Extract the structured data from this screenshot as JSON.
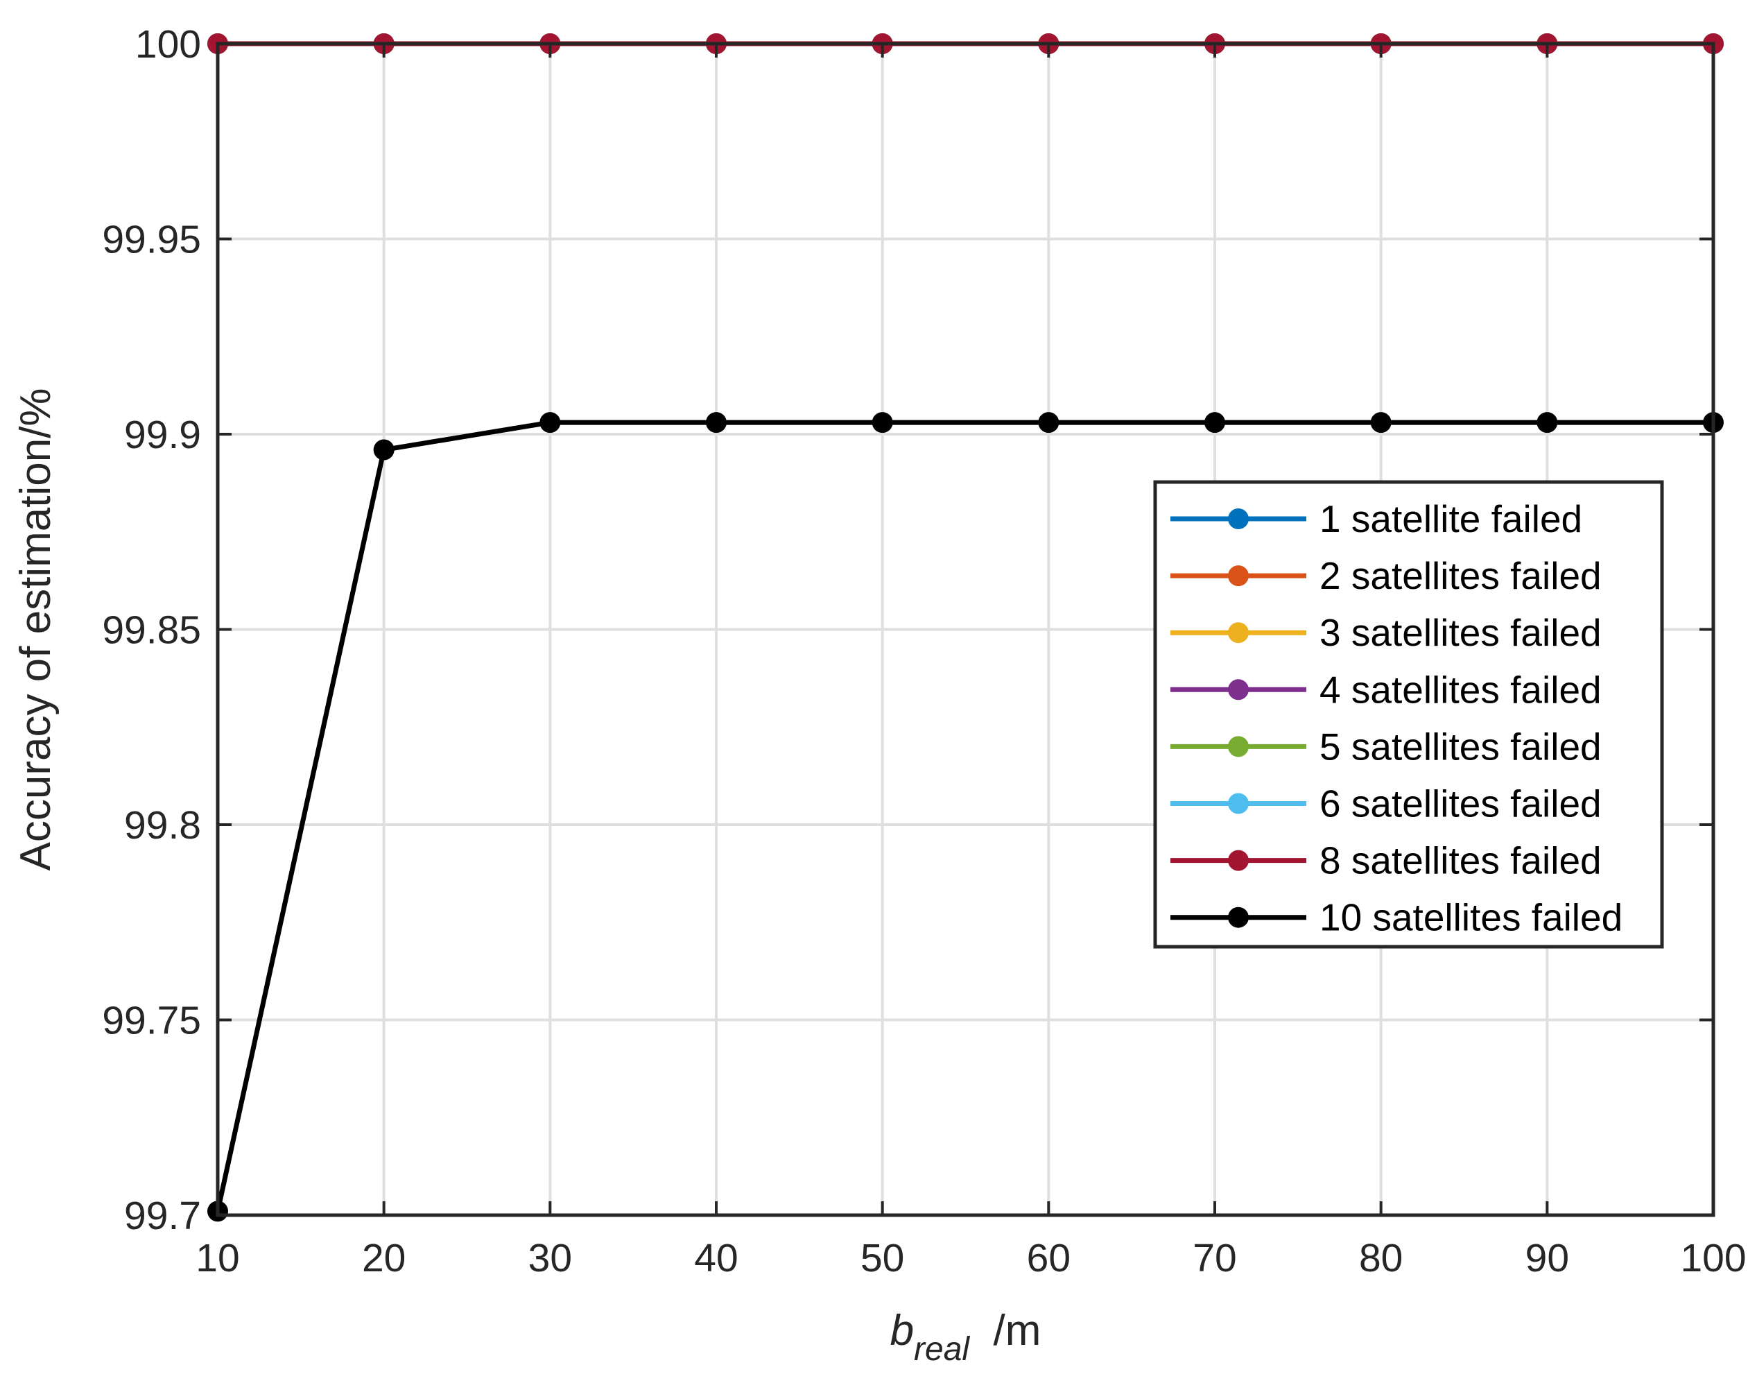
{
  "chart_data": {
    "type": "line",
    "xlabel": {
      "main": "b",
      "sub": "real",
      "suffix": "  /m"
    },
    "ylabel": "Accuracy of estimation/%",
    "xlim": [
      10,
      100
    ],
    "ylim": [
      99.7,
      100
    ],
    "x_ticks": [
      10,
      20,
      30,
      40,
      50,
      60,
      70,
      80,
      90,
      100
    ],
    "y_ticks": [
      99.7,
      99.75,
      99.8,
      99.85,
      99.9,
      99.95,
      100
    ],
    "x_tick_labels": [
      "10",
      "20",
      "30",
      "40",
      "50",
      "60",
      "70",
      "80",
      "90",
      "100"
    ],
    "y_tick_labels": [
      "99.7",
      "99.75",
      "99.8",
      "99.85",
      "99.9",
      "99.95",
      "100"
    ],
    "grid": true,
    "legend_position": "right",
    "x": [
      10,
      20,
      30,
      40,
      50,
      60,
      70,
      80,
      90,
      100
    ],
    "series": [
      {
        "name": "1 satellite failed",
        "color": "#0072BD",
        "values": [
          100,
          100,
          100,
          100,
          100,
          100,
          100,
          100,
          100,
          100
        ]
      },
      {
        "name": "2 satellites failed",
        "color": "#D95319",
        "values": [
          100,
          100,
          100,
          100,
          100,
          100,
          100,
          100,
          100,
          100
        ]
      },
      {
        "name": "3 satellites failed",
        "color": "#EDB120",
        "values": [
          100,
          100,
          100,
          100,
          100,
          100,
          100,
          100,
          100,
          100
        ]
      },
      {
        "name": "4 satellites failed",
        "color": "#7E2F8E",
        "values": [
          100,
          100,
          100,
          100,
          100,
          100,
          100,
          100,
          100,
          100
        ]
      },
      {
        "name": "5 satellites failed",
        "color": "#77AC30",
        "values": [
          100,
          100,
          100,
          100,
          100,
          100,
          100,
          100,
          100,
          100
        ]
      },
      {
        "name": "6 satellites failed",
        "color": "#4DBEEE",
        "values": [
          100,
          100,
          100,
          100,
          100,
          100,
          100,
          100,
          100,
          100
        ]
      },
      {
        "name": "8 satellites failed",
        "color": "#A2142F",
        "values": [
          100,
          100,
          100,
          100,
          100,
          100,
          100,
          100,
          100,
          100
        ]
      },
      {
        "name": "10 satellites failed",
        "color": "#000000",
        "values": [
          99.701,
          99.896,
          99.903,
          99.903,
          99.903,
          99.903,
          99.903,
          99.903,
          99.903,
          99.903
        ]
      }
    ]
  }
}
